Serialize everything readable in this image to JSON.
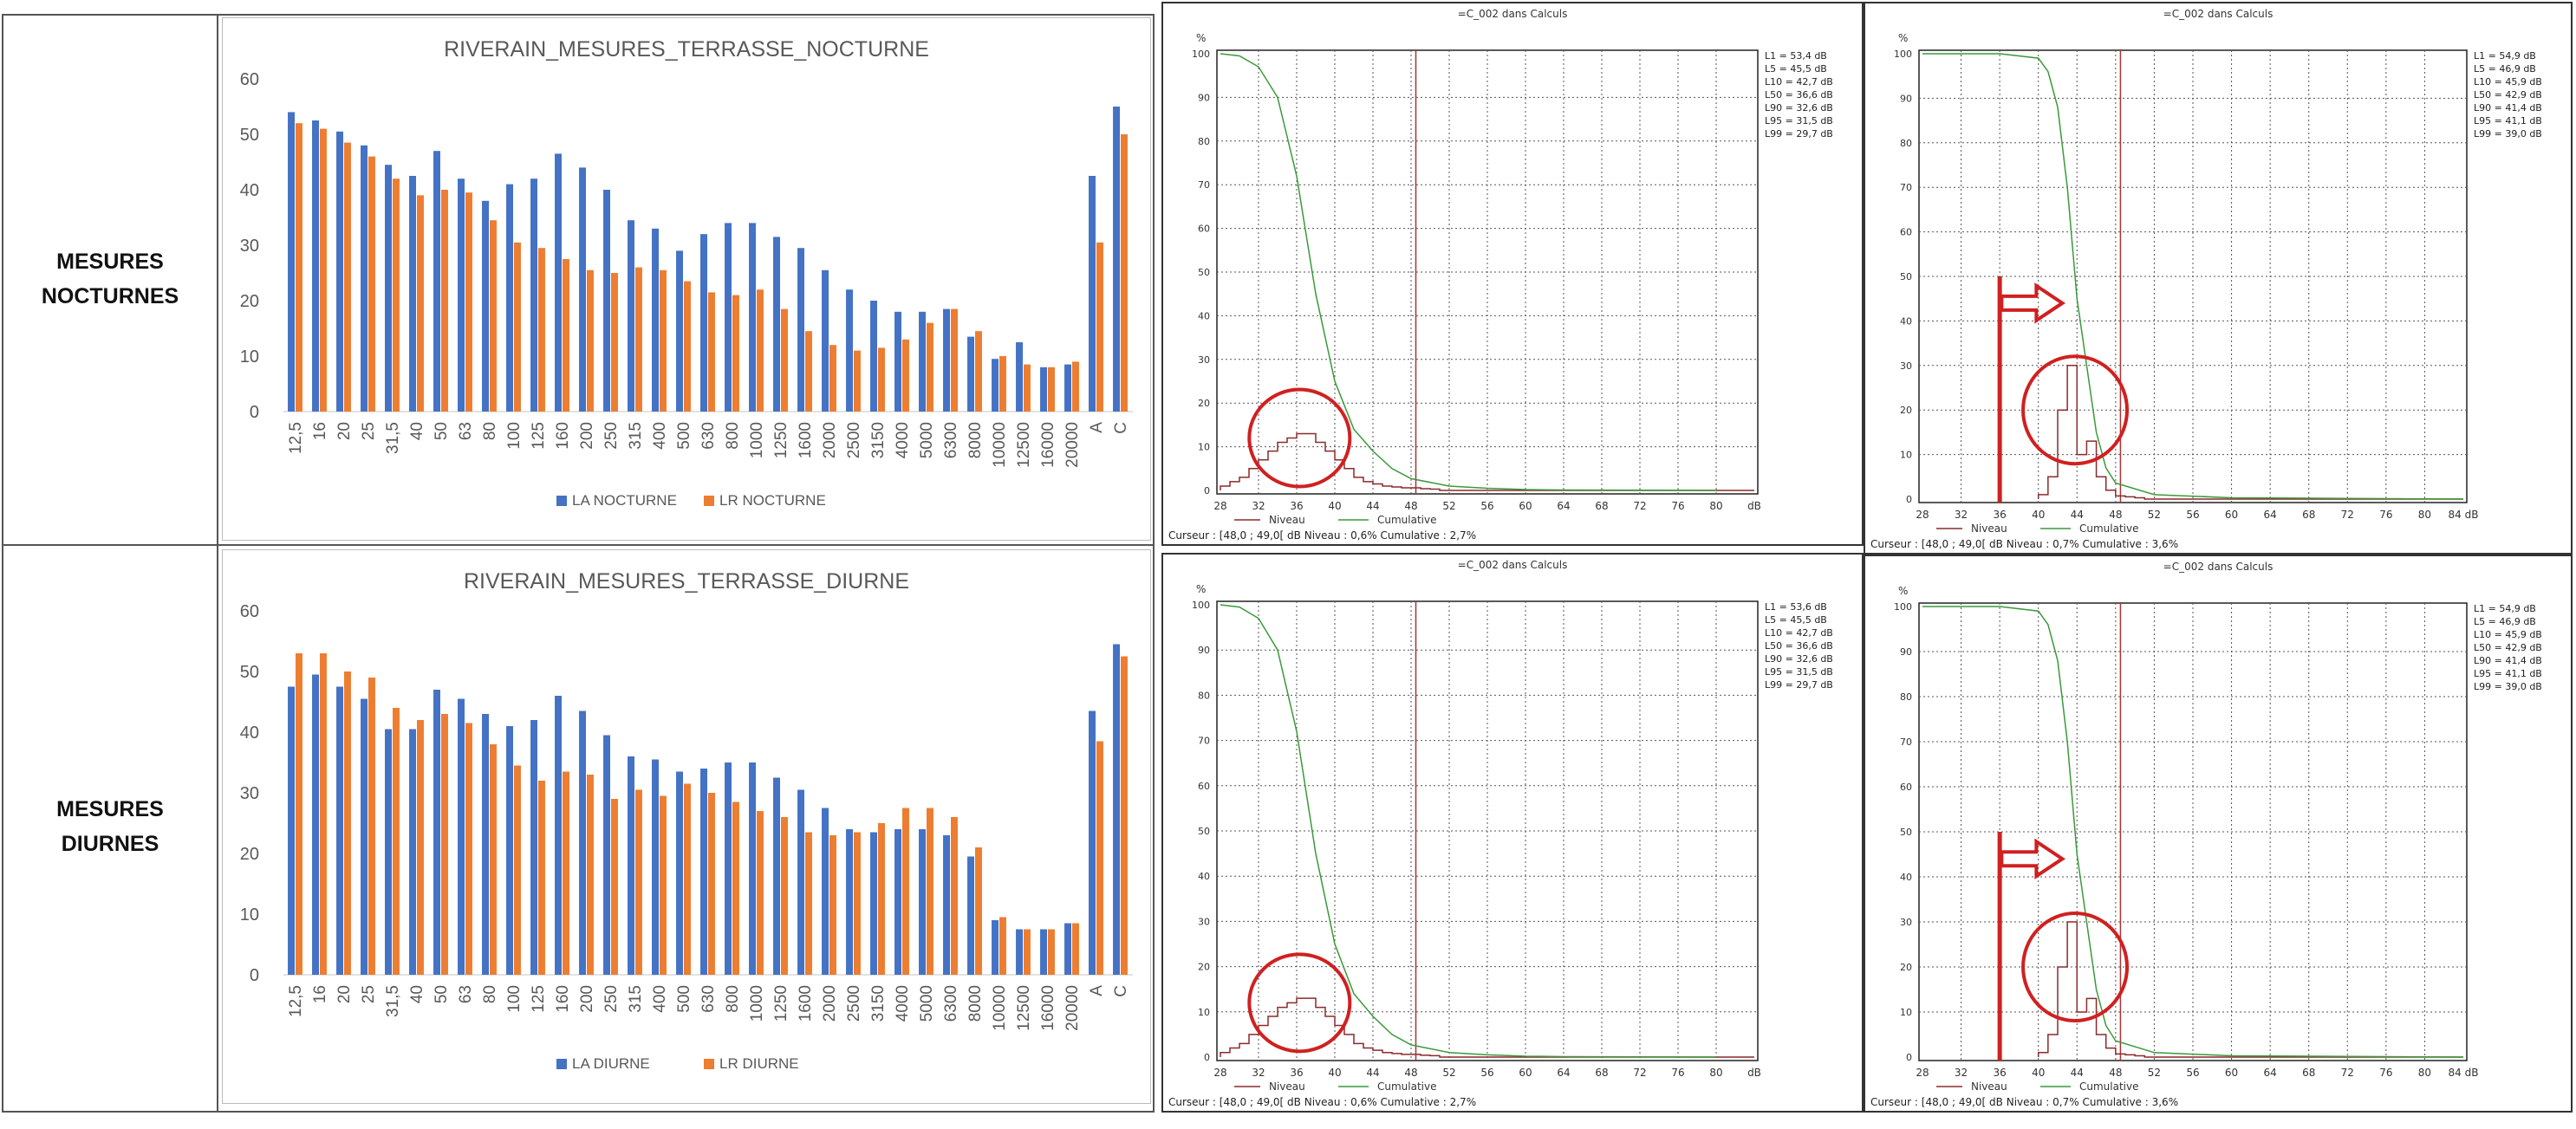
{
  "row_labels": {
    "nocturne_line1": "MESURES",
    "nocturne_line2": "NOCTURNES",
    "diurne_line1": "MESURES",
    "diurne_line2": "DIURNES"
  },
  "chart_data": [
    {
      "type": "bar",
      "title": "RIVERAIN_MESURES_TERRASSE_NOCTURNE",
      "categories": [
        "12,5",
        "16",
        "20",
        "25",
        "31,5",
        "40",
        "50",
        "63",
        "80",
        "100",
        "125",
        "160",
        "200",
        "250",
        "315",
        "400",
        "500",
        "630",
        "800",
        "1000",
        "1250",
        "1600",
        "2000",
        "2500",
        "3150",
        "4000",
        "5000",
        "6300",
        "8000",
        "10000",
        "12500",
        "16000",
        "20000",
        "A",
        "C"
      ],
      "series": [
        {
          "name": "LA NOCTURNE",
          "color": "#4472C4",
          "values": [
            54,
            52.5,
            50.5,
            48,
            44.5,
            42.5,
            47,
            42,
            38,
            41,
            42,
            46.5,
            44,
            40,
            34.5,
            33,
            29,
            32,
            34,
            34,
            31.5,
            29.5,
            25.5,
            22,
            20,
            18,
            18,
            18.5,
            13.5,
            9.5,
            12.5,
            8,
            8.5,
            42.5,
            55
          ]
        },
        {
          "name": "LR NOCTURNE",
          "color": "#ED7D31",
          "values": [
            52,
            51,
            48.5,
            46,
            42,
            39,
            40,
            39.5,
            34.5,
            30.5,
            29.5,
            27.5,
            25.5,
            25,
            26,
            25.5,
            23.5,
            21.5,
            21,
            22,
            18.5,
            14.5,
            12,
            11,
            11.5,
            13,
            16,
            18.5,
            14.5,
            10,
            8.5,
            8,
            9,
            30.5,
            50
          ]
        }
      ],
      "ylim": [
        0,
        60
      ],
      "yticks": [
        "0",
        "10",
        "20",
        "30",
        "40",
        "50",
        "60"
      ],
      "legend": "bottom"
    },
    {
      "type": "bar",
      "title": "RIVERAIN_MESURES_TERRASSE_DIURNE",
      "categories": [
        "12,5",
        "16",
        "20",
        "25",
        "31,5",
        "40",
        "50",
        "63",
        "80",
        "100",
        "125",
        "160",
        "200",
        "250",
        "315",
        "400",
        "500",
        "630",
        "800",
        "1000",
        "1250",
        "1600",
        "2000",
        "2500",
        "3150",
        "4000",
        "5000",
        "6300",
        "8000",
        "10000",
        "12500",
        "16000",
        "20000",
        "A",
        "C"
      ],
      "series": [
        {
          "name": "LA DIURNE",
          "color": "#4472C4",
          "values": [
            47.5,
            49.5,
            47.5,
            45.5,
            40.5,
            40.5,
            47,
            45.5,
            43,
            41,
            42,
            46,
            43.5,
            39.5,
            36,
            35.5,
            33.5,
            34,
            35,
            35,
            32.5,
            30.5,
            27.5,
            24,
            23.5,
            24,
            24,
            23,
            19.5,
            9,
            7.5,
            7.5,
            8.5,
            43.5,
            54.5
          ]
        },
        {
          "name": "LR DIURNE",
          "color": "#ED7D31",
          "values": [
            53,
            53,
            50,
            49,
            44,
            42,
            43,
            41.5,
            38,
            34.5,
            32,
            33.5,
            33,
            29,
            30.5,
            29.5,
            31.5,
            30,
            28.5,
            27,
            26,
            23.5,
            23,
            23.5,
            25,
            27.5,
            27.5,
            26,
            21,
            9.5,
            7.5,
            7.5,
            8.5,
            38.5,
            52.5
          ]
        }
      ],
      "ylim": [
        0,
        60
      ],
      "yticks": [
        "0",
        "10",
        "20",
        "30",
        "40",
        "50",
        "60"
      ],
      "legend": "bottom"
    },
    {
      "type": "line",
      "title": "=C_002 dans Calculs",
      "x_ticks": [
        "28",
        "32",
        "36",
        "40",
        "44",
        "48",
        "52",
        "56",
        "60",
        "64",
        "68",
        "72",
        "76",
        "80",
        "dB"
      ],
      "y_ticks": [
        "0",
        "10",
        "20",
        "30",
        "40",
        "50",
        "60",
        "70",
        "80",
        "90",
        "100"
      ],
      "y_unit": "%",
      "stats": [
        "L1   = 53,4 dB",
        "L5   = 45,5 dB",
        "L10  = 42,7 dB",
        "L50  = 36,6 dB",
        "L90  = 32,6 dB",
        "L95  = 31,5 dB",
        "L99  = 29,7 dB"
      ],
      "legend": [
        "Niveau",
        "Cumulative"
      ],
      "footer": "Curseur : [48,0 ; 49,0[ dB   Niveau : 0,6%   Cumulative : 2,7%",
      "cursor_x": 48.5,
      "histogram": [
        [
          28,
          1
        ],
        [
          29,
          2
        ],
        [
          30,
          3
        ],
        [
          31,
          5
        ],
        [
          32,
          7
        ],
        [
          33,
          9
        ],
        [
          34,
          11
        ],
        [
          35,
          12
        ],
        [
          36,
          13
        ],
        [
          37,
          13
        ],
        [
          38,
          11
        ],
        [
          39,
          9
        ],
        [
          40,
          7
        ],
        [
          41,
          5
        ],
        [
          42,
          3
        ],
        [
          43,
          2
        ],
        [
          44,
          1.5
        ],
        [
          45,
          1
        ],
        [
          46,
          0.8
        ],
        [
          47,
          0.6
        ],
        [
          48,
          0.6
        ],
        [
          49,
          0.4
        ],
        [
          50,
          0.3
        ]
      ],
      "cumulative": [
        [
          28,
          100
        ],
        [
          30,
          99.5
        ],
        [
          32,
          97
        ],
        [
          34,
          90
        ],
        [
          36,
          72
        ],
        [
          38,
          45
        ],
        [
          40,
          25
        ],
        [
          42,
          14
        ],
        [
          44,
          9
        ],
        [
          46,
          5
        ],
        [
          48,
          2.7
        ],
        [
          52,
          1
        ],
        [
          56,
          0.5
        ],
        [
          60,
          0.2
        ],
        [
          64,
          0.1
        ],
        [
          80,
          0
        ]
      ],
      "annotation": "circle"
    },
    {
      "type": "line",
      "title": "=C_002 dans Calculs",
      "x_ticks": [
        "28",
        "32",
        "36",
        "40",
        "44",
        "48",
        "52",
        "56",
        "60",
        "64",
        "68",
        "72",
        "76",
        "80",
        "84 dB"
      ],
      "y_ticks": [
        "0",
        "10",
        "20",
        "30",
        "40",
        "50",
        "60",
        "70",
        "80",
        "90",
        "100"
      ],
      "y_unit": "%",
      "stats": [
        "L1   = 54,9 dB",
        "L5   = 46,9 dB",
        "L10  = 45,9 dB",
        "L50  = 42,9 dB",
        "L90  = 41,4 dB",
        "L95  = 41,1 dB",
        "L99  = 39,0 dB"
      ],
      "legend": [
        "Niveau",
        "Cumulative"
      ],
      "footer": "Curseur : [48,0 ; 49,0[ dB   Niveau : 0,7%   Cumulative : 3,6%",
      "cursor_x": 48.5,
      "histogram": [
        [
          40,
          1
        ],
        [
          41,
          5
        ],
        [
          42,
          20
        ],
        [
          43,
          30
        ],
        [
          44,
          10
        ],
        [
          45,
          13
        ],
        [
          46,
          5
        ],
        [
          47,
          2
        ],
        [
          48,
          0.7
        ],
        [
          49,
          0.5
        ],
        [
          50,
          0.3
        ]
      ],
      "cumulative": [
        [
          28,
          100
        ],
        [
          36,
          100
        ],
        [
          40,
          99
        ],
        [
          41,
          96
        ],
        [
          42,
          88
        ],
        [
          43,
          70
        ],
        [
          44,
          45
        ],
        [
          45,
          30
        ],
        [
          46,
          15
        ],
        [
          47,
          7
        ],
        [
          48,
          3.6
        ],
        [
          52,
          1
        ],
        [
          60,
          0.3
        ],
        [
          84,
          0
        ]
      ],
      "annotation": "circle-arrow"
    },
    {
      "type": "line",
      "title": "=C_002 dans Calculs",
      "x_ticks": [
        "28",
        "32",
        "36",
        "40",
        "44",
        "48",
        "52",
        "56",
        "60",
        "64",
        "68",
        "72",
        "76",
        "80",
        "dB"
      ],
      "y_ticks": [
        "0",
        "10",
        "20",
        "30",
        "40",
        "50",
        "60",
        "70",
        "80",
        "90",
        "100"
      ],
      "y_unit": "%",
      "stats": [
        "L1  = 53,6 dB",
        "L5  = 45,5 dB",
        "L10 = 42,7 dB",
        "L50 = 36,6 dB",
        "L90 = 32,6 dB",
        "L95 = 31,5 dB",
        "L99 = 29,7 dB"
      ],
      "legend": [
        "Niveau",
        "Cumulative"
      ],
      "footer": "Curseur : [48,0 ; 49,0[ dB   Niveau : 0,6%   Cumulative : 2,7%",
      "cursor_x": 48.5,
      "histogram": [
        [
          28,
          1
        ],
        [
          29,
          2
        ],
        [
          30,
          3
        ],
        [
          31,
          5
        ],
        [
          32,
          7
        ],
        [
          33,
          9
        ],
        [
          34,
          11
        ],
        [
          35,
          12
        ],
        [
          36,
          13
        ],
        [
          37,
          13
        ],
        [
          38,
          11
        ],
        [
          39,
          9
        ],
        [
          40,
          7
        ],
        [
          41,
          5
        ],
        [
          42,
          3
        ],
        [
          43,
          2
        ],
        [
          44,
          1.5
        ],
        [
          45,
          1
        ],
        [
          46,
          0.8
        ],
        [
          47,
          0.6
        ],
        [
          48,
          0.6
        ],
        [
          49,
          0.4
        ],
        [
          50,
          0.3
        ]
      ],
      "cumulative": [
        [
          28,
          100
        ],
        [
          30,
          99.5
        ],
        [
          32,
          97
        ],
        [
          34,
          90
        ],
        [
          36,
          72
        ],
        [
          38,
          45
        ],
        [
          40,
          25
        ],
        [
          42,
          14
        ],
        [
          44,
          9
        ],
        [
          46,
          5
        ],
        [
          48,
          2.7
        ],
        [
          52,
          1
        ],
        [
          56,
          0.5
        ],
        [
          60,
          0.2
        ],
        [
          64,
          0.1
        ],
        [
          80,
          0
        ]
      ],
      "annotation": "circle"
    },
    {
      "type": "line",
      "title": "=C_002 dans Calculs",
      "x_ticks": [
        "28",
        "32",
        "36",
        "40",
        "44",
        "48",
        "52",
        "56",
        "60",
        "64",
        "68",
        "72",
        "76",
        "80",
        "84 dB"
      ],
      "y_ticks": [
        "0",
        "10",
        "20",
        "30",
        "40",
        "50",
        "60",
        "70",
        "80",
        "90",
        "100"
      ],
      "y_unit": "%",
      "stats": [
        "L1   = 54,9 dB",
        "L5   = 46,9 dB",
        "L10  = 45,9 dB",
        "L50  = 42,9 dB",
        "L90  = 41,4 dB",
        "L95  = 41,1 dB",
        "L99  = 39,0 dB"
      ],
      "legend": [
        "Niveau",
        "Cumulative"
      ],
      "footer": "Curseur : [48,0 ; 49,0[ dB   Niveau : 0,7%   Cumulative : 3,6%",
      "cursor_x": 48.5,
      "histogram": [
        [
          40,
          1
        ],
        [
          41,
          5
        ],
        [
          42,
          20
        ],
        [
          43,
          30
        ],
        [
          44,
          10
        ],
        [
          45,
          13
        ],
        [
          46,
          5
        ],
        [
          47,
          2
        ],
        [
          48,
          0.7
        ],
        [
          49,
          0.5
        ],
        [
          50,
          0.3
        ]
      ],
      "cumulative": [
        [
          28,
          100
        ],
        [
          36,
          100
        ],
        [
          40,
          99
        ],
        [
          41,
          96
        ],
        [
          42,
          88
        ],
        [
          43,
          70
        ],
        [
          44,
          45
        ],
        [
          45,
          30
        ],
        [
          46,
          15
        ],
        [
          47,
          7
        ],
        [
          48,
          3.6
        ],
        [
          52,
          1
        ],
        [
          60,
          0.3
        ],
        [
          84,
          0
        ]
      ],
      "annotation": "circle-arrow"
    }
  ]
}
